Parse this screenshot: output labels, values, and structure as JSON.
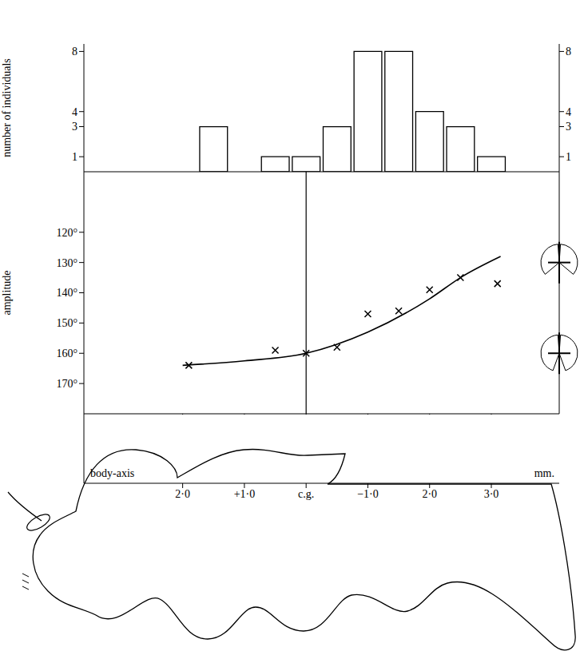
{
  "chart_data": [
    {
      "type": "histogram",
      "y_label": "number of individuals",
      "bins": [
        -3.25,
        -2.75,
        -2.25,
        -1.75,
        -1.25,
        -0.75,
        -0.25,
        0.25,
        0.75,
        1.25,
        1.75
      ],
      "counts": [
        1,
        3,
        4,
        8,
        8,
        3,
        1,
        1,
        0,
        3
      ],
      "xlim": [
        3.6,
        -4.1
      ],
      "ylim": [
        0,
        8.5
      ],
      "yticks": [
        1,
        3,
        4,
        8
      ],
      "tick_labels": "y",
      "grid": false
    },
    {
      "type": "scatter",
      "y_label": "amplitude",
      "x_label": "body-axis",
      "x_unit": "mm.",
      "marker": "x",
      "x": [
        1.9,
        0.5,
        0,
        -0.5,
        -1.0,
        -1.5,
        -2.0,
        -2.5,
        -3.1
      ],
      "values": [
        164,
        159,
        160,
        158,
        147,
        146,
        139,
        135,
        137
      ],
      "fit_curve": {
        "x": [
          2.0,
          1.0,
          0,
          -1.0,
          -2.0,
          -2.5,
          -3.15
        ],
        "values": [
          164,
          162.5,
          160,
          153,
          142,
          135,
          128
        ]
      },
      "wing_diagrams": [
        130,
        160
      ],
      "xlim": [
        3.6,
        -4.1
      ],
      "ylim": [
        180,
        100
      ],
      "xticks": [
        {
          "value": 2,
          "label": "2·0"
        },
        {
          "value": 1,
          "label": "+1·0"
        },
        {
          "value": 0,
          "label": "c.g."
        },
        {
          "value": -1,
          "label": "−1·0"
        },
        {
          "value": -2,
          "label": "2·0"
        },
        {
          "value": -3,
          "label": "3·0"
        }
      ],
      "yticks": [
        {
          "value": 120,
          "label": "120°"
        },
        {
          "value": 130,
          "label": "130°"
        },
        {
          "value": 140,
          "label": "140°"
        },
        {
          "value": 150,
          "label": "150°"
        },
        {
          "value": 160,
          "label": "160°"
        },
        {
          "value": 170,
          "label": "170°"
        }
      ],
      "tick_labels": true,
      "grid": false
    }
  ]
}
